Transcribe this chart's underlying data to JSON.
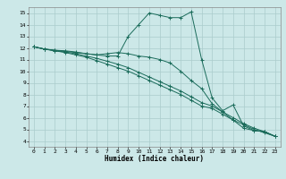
{
  "xlabel": "Humidex (Indice chaleur)",
  "bg_color": "#cce8e8",
  "grid_color": "#aacccc",
  "line_color": "#1a6b5a",
  "xlim": [
    -0.5,
    23.5
  ],
  "ylim": [
    3.5,
    15.5
  ],
  "xticks": [
    0,
    1,
    2,
    3,
    4,
    5,
    6,
    7,
    8,
    9,
    10,
    11,
    12,
    13,
    14,
    15,
    16,
    17,
    18,
    19,
    20,
    21,
    22,
    23
  ],
  "yticks": [
    4,
    5,
    6,
    7,
    8,
    9,
    10,
    11,
    12,
    13,
    14,
    15
  ],
  "series": [
    {
      "x": [
        0,
        1,
        2,
        3,
        4,
        5,
        6,
        7,
        8,
        9,
        10,
        11,
        12,
        13,
        14,
        15,
        16,
        17,
        18,
        19,
        20,
        21,
        22,
        23
      ],
      "y": [
        12.1,
        11.9,
        11.75,
        11.6,
        11.4,
        11.2,
        10.9,
        10.6,
        10.3,
        10.0,
        9.6,
        9.2,
        8.8,
        8.4,
        8.0,
        7.5,
        7.0,
        6.8,
        6.3,
        5.8,
        5.4,
        5.0,
        4.7,
        4.4
      ]
    },
    {
      "x": [
        0,
        1,
        2,
        3,
        4,
        5,
        6,
        7,
        8,
        9,
        10,
        11,
        12,
        13,
        14,
        15,
        16,
        17,
        18,
        19,
        20,
        21,
        22,
        23
      ],
      "y": [
        12.1,
        11.9,
        11.75,
        11.65,
        11.5,
        11.3,
        11.1,
        10.85,
        10.6,
        10.3,
        9.9,
        9.5,
        9.1,
        8.7,
        8.3,
        7.8,
        7.3,
        7.0,
        6.5,
        6.0,
        5.5,
        5.1,
        4.8,
        4.4
      ]
    },
    {
      "x": [
        0,
        1,
        2,
        3,
        4,
        5,
        6,
        7,
        8,
        9,
        10,
        11,
        12,
        13,
        14,
        15,
        16,
        17,
        18,
        19,
        20,
        21,
        22,
        23
      ],
      "y": [
        12.1,
        11.9,
        11.8,
        11.7,
        11.6,
        11.5,
        11.4,
        11.3,
        11.3,
        13.0,
        14.0,
        15.0,
        14.8,
        14.6,
        14.6,
        15.1,
        11.0,
        7.7,
        6.6,
        7.1,
        5.3,
        4.9,
        4.8,
        4.4
      ]
    },
    {
      "x": [
        0,
        1,
        2,
        3,
        4,
        5,
        6,
        7,
        8,
        9,
        10,
        11,
        12,
        13,
        14,
        15,
        16,
        17,
        18,
        19,
        20,
        21,
        22,
        23
      ],
      "y": [
        12.1,
        11.9,
        11.8,
        11.75,
        11.65,
        11.5,
        11.4,
        11.5,
        11.6,
        11.5,
        11.3,
        11.2,
        11.0,
        10.7,
        10.0,
        9.2,
        8.5,
        7.2,
        6.5,
        5.8,
        5.1,
        4.9,
        4.8,
        4.4
      ]
    }
  ]
}
